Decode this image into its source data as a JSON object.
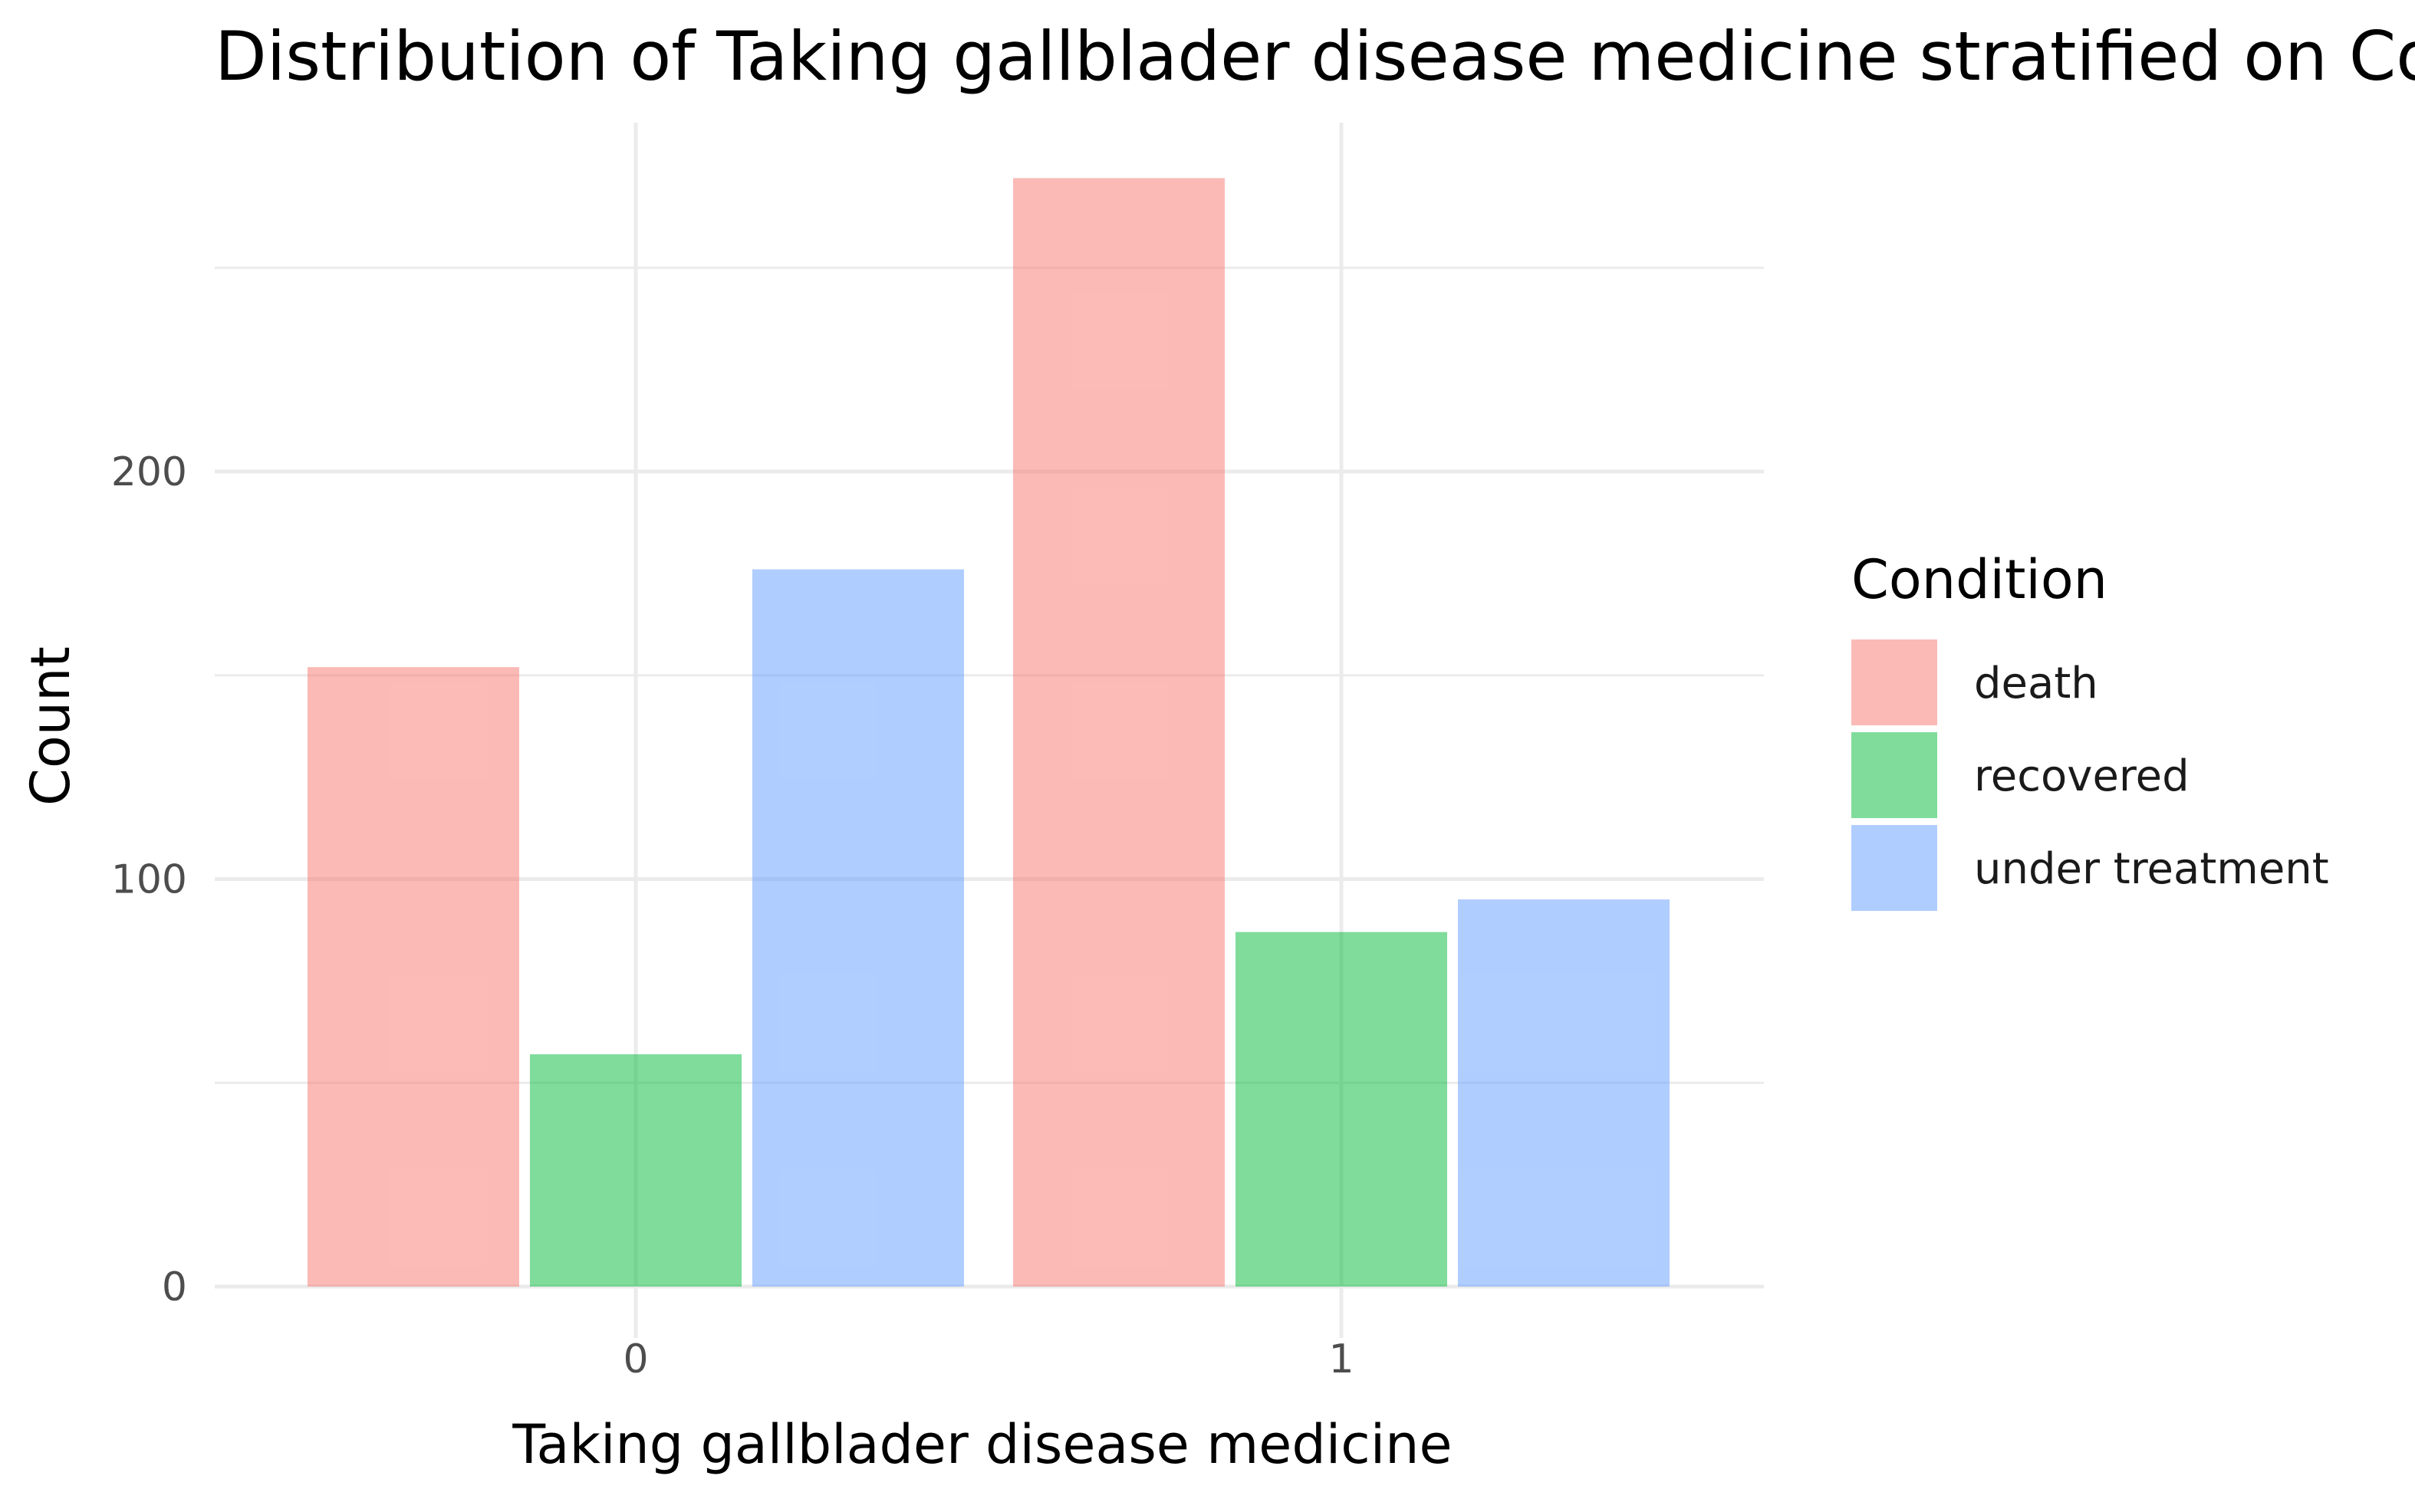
{
  "chart_data": {
    "type": "bar",
    "title": "Distribution of Taking gallblader disease medicine stratified on Condition",
    "xlabel": "Taking gallblader disease medicine",
    "ylabel": "Count",
    "categories": [
      "0",
      "1"
    ],
    "series": [
      {
        "name": "death",
        "values": [
          152,
          272
        ],
        "color": "#f8766d"
      },
      {
        "name": "recovered",
        "values": [
          57,
          87
        ],
        "color": "#00ba38"
      },
      {
        "name": "under treatment",
        "values": [
          176,
          95
        ],
        "color": "#619cff"
      }
    ],
    "ylim": [
      0,
      285
    ],
    "y_ticks": [
      0,
      100,
      200
    ],
    "grid": true,
    "legend": {
      "title": "Condition",
      "placement": "right"
    },
    "bar_opacity": 0.5
  }
}
